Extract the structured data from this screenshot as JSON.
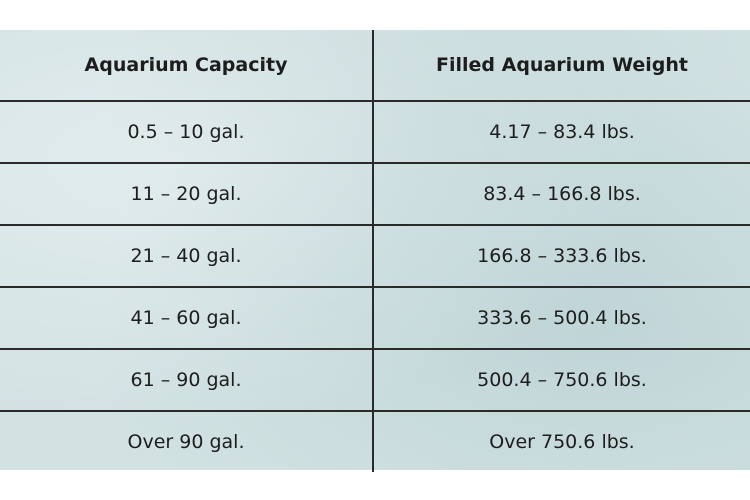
{
  "table": {
    "header": [
      "Aquarium Capacity",
      "Filled Aquarium Weight"
    ],
    "rows": [
      [
        "0.5 – 10 gal.",
        "4.17 – 83.4 lbs."
      ],
      [
        "11 – 20 gal.",
        "83.4 – 166.8 lbs."
      ],
      [
        "21 – 40 gal.",
        "166.8 – 333.6 lbs."
      ],
      [
        "41 – 60 gal.",
        "333.6 – 500.4 lbs."
      ],
      [
        "61 – 90 gal.",
        "500.4 – 750.6 lbs."
      ],
      [
        "Over 90 gal.",
        "Over 750.6 lbs."
      ]
    ]
  }
}
